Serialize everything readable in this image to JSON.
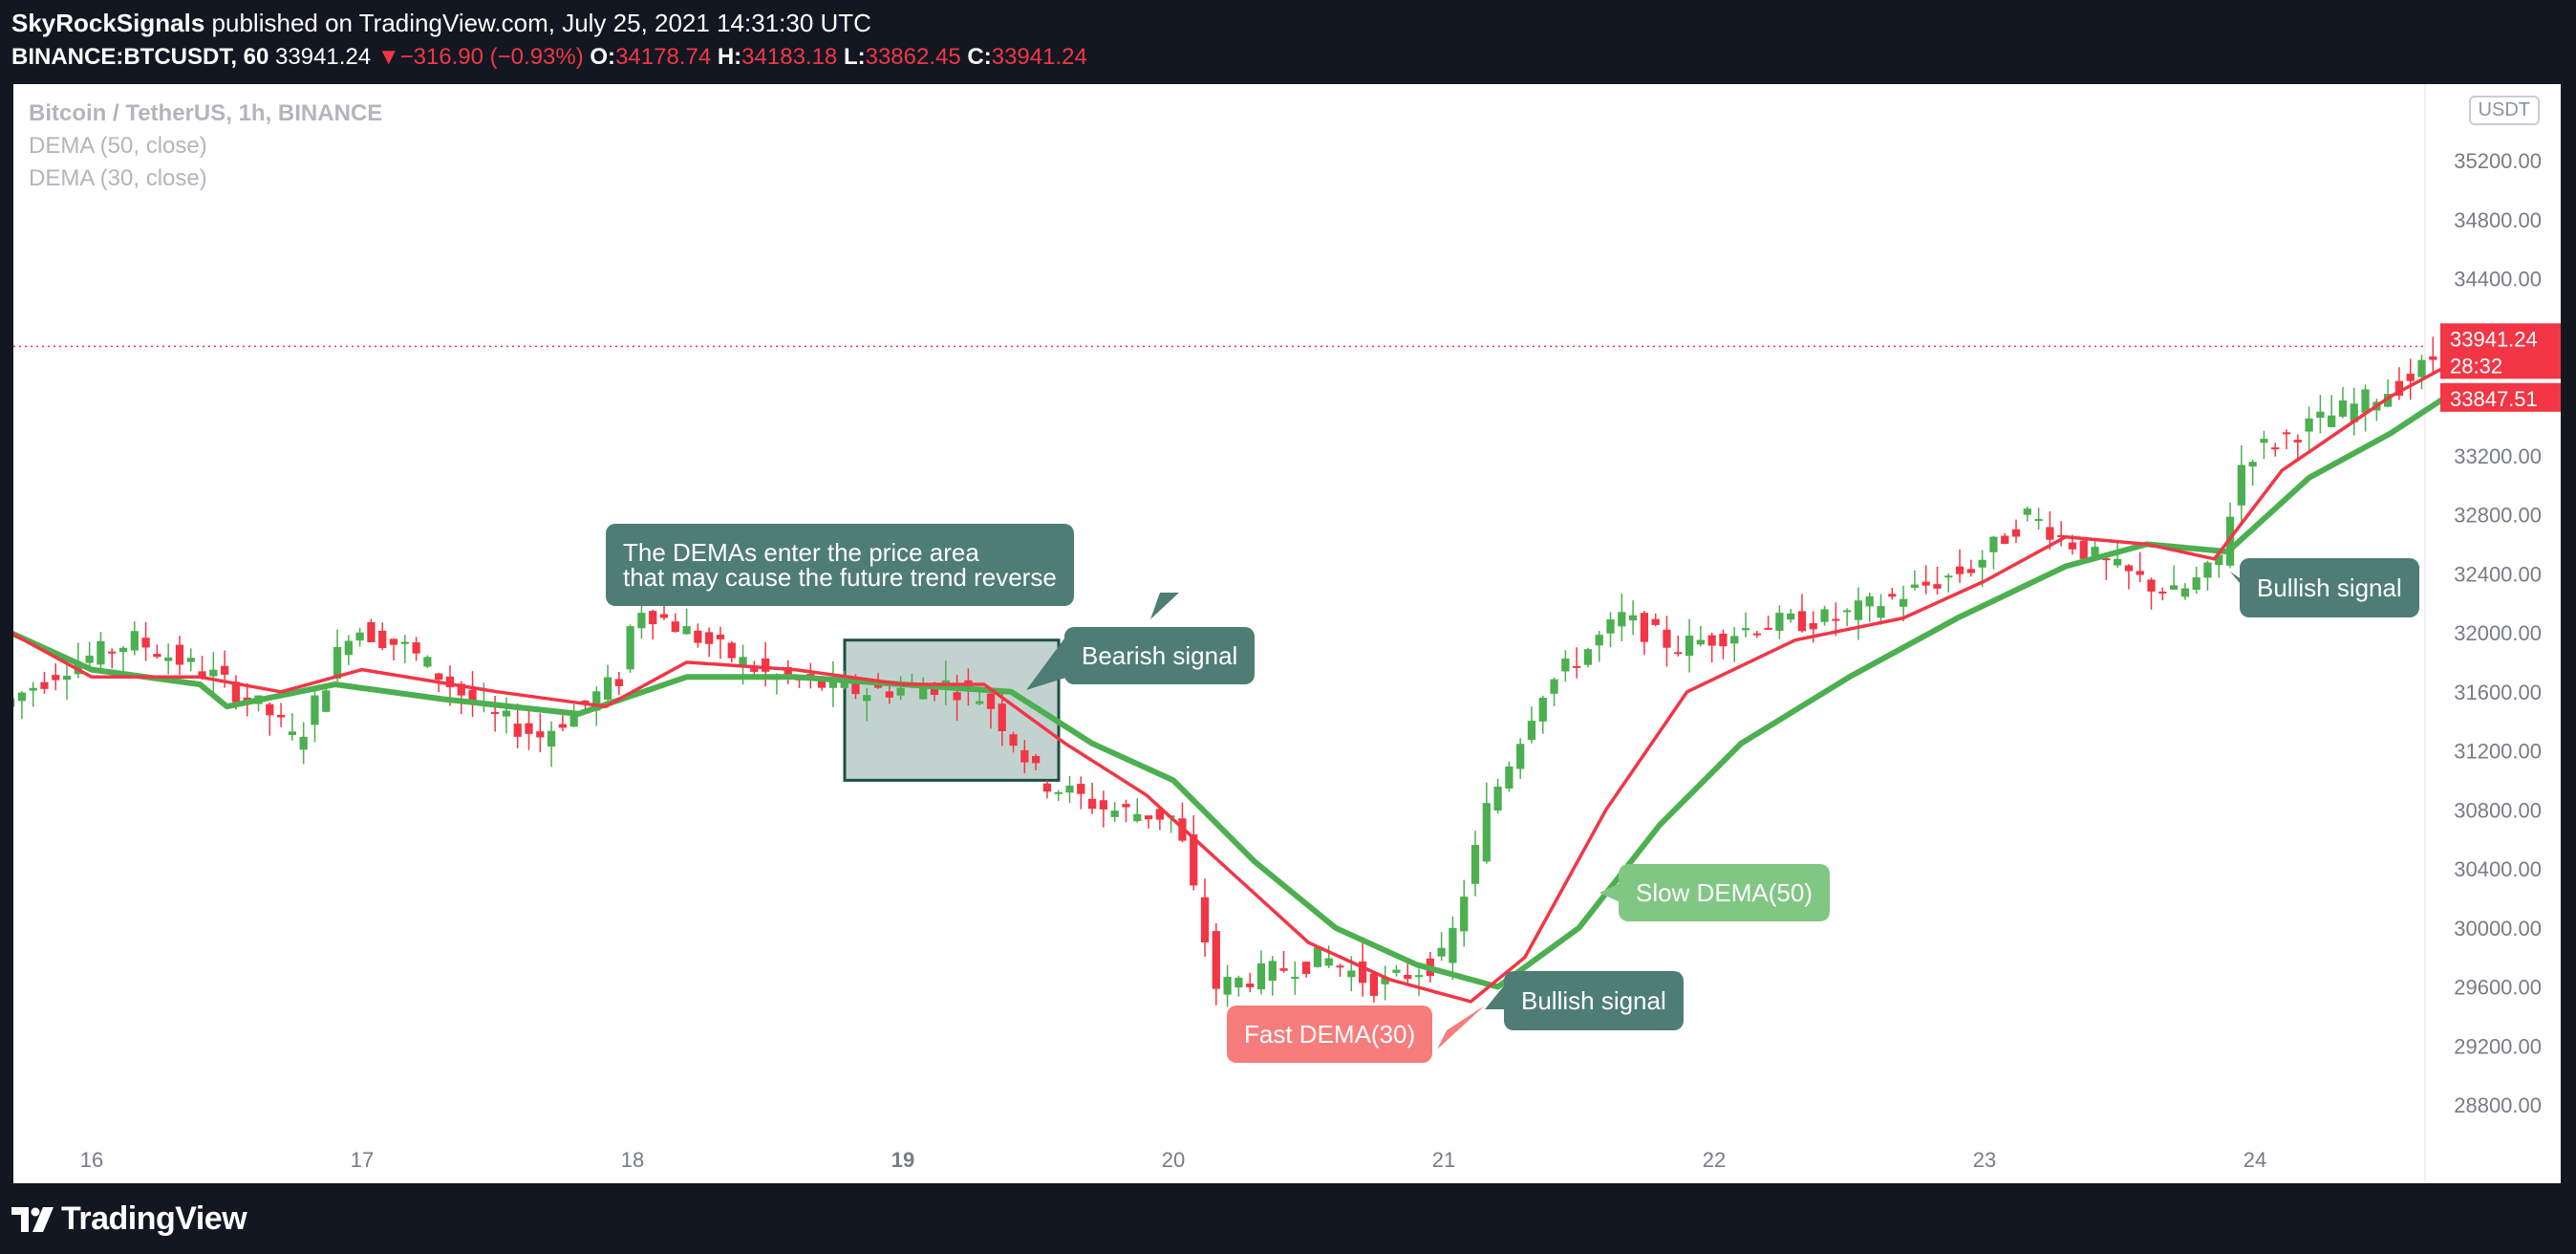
{
  "header": {
    "publisher": "SkyRockSignals",
    "published_text": "published on TradingView.com, July 25, 2021 14:31:30 UTC",
    "symbol": "BINANCE:BTCUSDT, 60",
    "last": "33941.24",
    "change_arrow": "▼",
    "change": "−316.90 (−0.93%)",
    "open_label": "O:",
    "open": "34178.74",
    "high_label": "H:",
    "high": "34183.18",
    "low_label": "L:",
    "low": "33862.45",
    "close_label": "C:",
    "close": "33941.24"
  },
  "legend": {
    "title": "Bitcoin / TetherUS, 1h, BINANCE",
    "dema_slow": "DEMA (50, close)",
    "dema_fast": "DEMA (30, close)"
  },
  "currency_badge": "USDT",
  "price_labels": {
    "last": "33941.24",
    "countdown": "28:32",
    "dema_value": "33847.51"
  },
  "annotations": {
    "note_line1": "The DEMAs enter the price area",
    "note_line2": "that may cause the future trend reverse",
    "bearish": "Bearish signal",
    "bullish_1": "Bullish signal",
    "bullish_2": "Bullish signal",
    "slow_dema": "Slow DEMA(50)",
    "fast_dema": "Fast DEMA(30)"
  },
  "footer": {
    "brand": "TradingView"
  },
  "colors": {
    "up": "#4caf50",
    "down": "#f23645",
    "fast_dema": "#f23645",
    "slow_dema": "#4caf50",
    "callout_teal": "#4e7d76",
    "callout_green": "#81c784",
    "callout_red": "#f77c7c",
    "background": "#131722",
    "axis_text": "#787b86"
  },
  "chart_data": {
    "type": "candlestick",
    "symbol": "BINANCE:BTCUSDT",
    "interval": "1h",
    "yticks": [
      "28800.00",
      "29200.00",
      "29600.00",
      "30000.00",
      "30400.00",
      "30800.00",
      "31200.00",
      "31600.00",
      "32000.00",
      "32400.00",
      "32800.00",
      "33200.00",
      "34400.00",
      "34800.00",
      "35200.00"
    ],
    "xticks": [
      "16",
      "17",
      "18",
      "19",
      "20",
      "21",
      "22",
      "23",
      "24"
    ],
    "ylim": [
      28600,
      35600
    ],
    "price_path": [
      [
        15.7,
        31500
      ],
      [
        15.95,
        31780
      ],
      [
        16.2,
        31950
      ],
      [
        16.5,
        31700
      ],
      [
        16.7,
        31450
      ],
      [
        16.8,
        31250
      ],
      [
        17.0,
        32050
      ],
      [
        17.2,
        31900
      ],
      [
        17.5,
        31450
      ],
      [
        17.7,
        31300
      ],
      [
        18.0,
        31700
      ],
      [
        18.05,
        32200
      ],
      [
        18.3,
        31950
      ],
      [
        18.55,
        31700
      ],
      [
        18.9,
        31600
      ],
      [
        19.2,
        31650
      ],
      [
        19.35,
        31550
      ],
      [
        19.55,
        31000
      ],
      [
        19.8,
        30800
      ],
      [
        20.05,
        30750
      ],
      [
        20.2,
        29600
      ],
      [
        20.4,
        29700
      ],
      [
        20.6,
        29800
      ],
      [
        20.8,
        29600
      ],
      [
        21.05,
        29800
      ],
      [
        21.2,
        30800
      ],
      [
        21.4,
        31600
      ],
      [
        21.7,
        32100
      ],
      [
        21.9,
        31900
      ],
      [
        22.2,
        32050
      ],
      [
        22.5,
        32100
      ],
      [
        22.8,
        32300
      ],
      [
        23.0,
        32450
      ],
      [
        23.2,
        32800
      ],
      [
        23.5,
        32450
      ],
      [
        23.75,
        32250
      ],
      [
        23.9,
        32450
      ],
      [
        24.0,
        33200
      ],
      [
        24.3,
        33450
      ],
      [
        24.6,
        33700
      ],
      [
        24.75,
        33941
      ]
    ],
    "dema_fast": [
      [
        15.7,
        32000
      ],
      [
        16.0,
        31700
      ],
      [
        16.4,
        31700
      ],
      [
        16.7,
        31600
      ],
      [
        17.0,
        31750
      ],
      [
        17.5,
        31600
      ],
      [
        17.9,
        31500
      ],
      [
        18.2,
        31800
      ],
      [
        18.6,
        31750
      ],
      [
        19.0,
        31650
      ],
      [
        19.3,
        31650
      ],
      [
        19.6,
        31250
      ],
      [
        19.9,
        30900
      ],
      [
        20.2,
        30400
      ],
      [
        20.5,
        29900
      ],
      [
        20.8,
        29650
      ],
      [
        21.1,
        29500
      ],
      [
        21.3,
        29800
      ],
      [
        21.6,
        30800
      ],
      [
        21.9,
        31600
      ],
      [
        22.3,
        31950
      ],
      [
        22.7,
        32100
      ],
      [
        23.0,
        32350
      ],
      [
        23.3,
        32650
      ],
      [
        23.6,
        32600
      ],
      [
        23.85,
        32500
      ],
      [
        24.1,
        33100
      ],
      [
        24.5,
        33600
      ],
      [
        24.75,
        33847
      ]
    ],
    "dema_slow": [
      [
        15.7,
        32000
      ],
      [
        16.0,
        31750
      ],
      [
        16.4,
        31650
      ],
      [
        16.5,
        31500
      ],
      [
        16.9,
        31650
      ],
      [
        17.3,
        31550
      ],
      [
        17.8,
        31450
      ],
      [
        18.2,
        31700
      ],
      [
        18.6,
        31700
      ],
      [
        19.0,
        31650
      ],
      [
        19.4,
        31600
      ],
      [
        19.7,
        31250
      ],
      [
        20.0,
        31000
      ],
      [
        20.3,
        30450
      ],
      [
        20.6,
        30000
      ],
      [
        20.9,
        29750
      ],
      [
        21.2,
        29600
      ],
      [
        21.5,
        30000
      ],
      [
        21.8,
        30700
      ],
      [
        22.1,
        31250
      ],
      [
        22.5,
        31700
      ],
      [
        22.9,
        32100
      ],
      [
        23.3,
        32450
      ],
      [
        23.6,
        32600
      ],
      [
        23.9,
        32550
      ],
      [
        24.2,
        33050
      ],
      [
        24.5,
        33350
      ],
      [
        24.75,
        33650
      ]
    ],
    "current_price": 33941.24,
    "countdown": "28:32",
    "dema_last": 33847.51,
    "grid": false,
    "legend": "top-left"
  }
}
